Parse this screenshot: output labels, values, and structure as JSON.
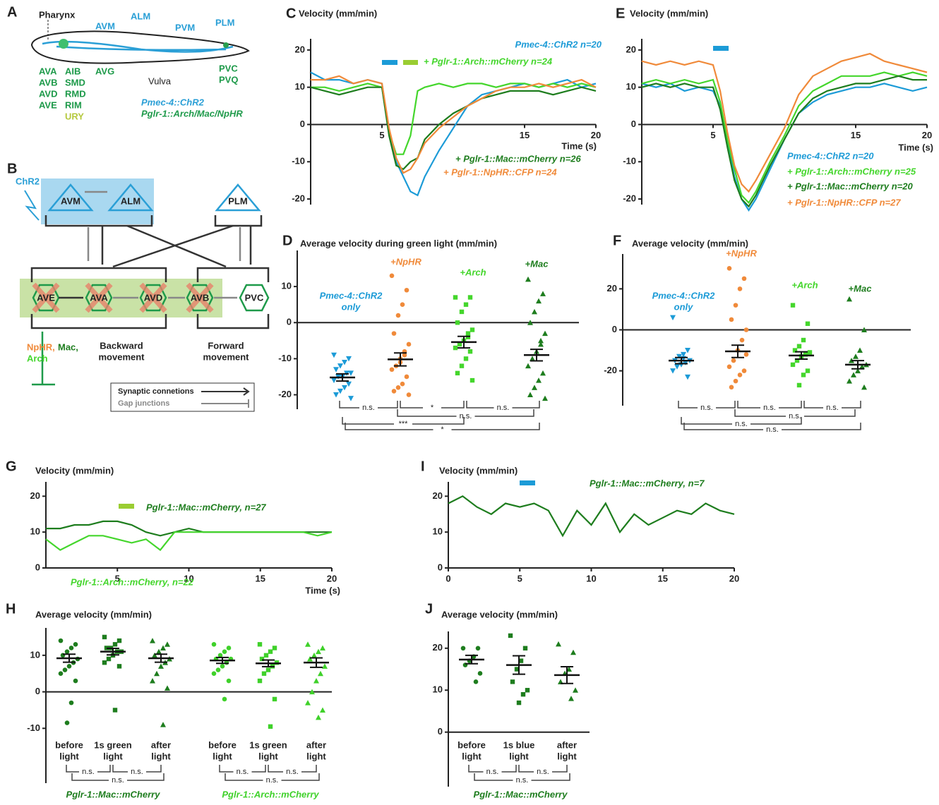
{
  "panel_a": {
    "letter": "A",
    "pharynx": "Pharynx",
    "blue_neurons": [
      "AVM",
      "ALM",
      "PVM",
      "PLM"
    ],
    "green_col1": [
      "AVA",
      "AVB",
      "AVD",
      "AVE"
    ],
    "green_col2": [
      "AIB",
      "SMD",
      "RMD",
      "RIM"
    ],
    "ury": "URY",
    "avg": "AVG",
    "vulva": "Vulva",
    "tail": [
      "PVC",
      "PVQ"
    ],
    "legend": [
      "Pmec-4::ChR2",
      "Pglr-1::Arch/Mac/NpHR"
    ]
  },
  "panel_b": {
    "letter": "B",
    "chr2": "ChR2",
    "nodes": [
      "AVM",
      "ALM",
      "PLM",
      "AVE",
      "AVA",
      "AVD",
      "AVB",
      "PVC"
    ],
    "inhibitors": [
      "NpHR,",
      "Mac,",
      "Arch"
    ],
    "groups": [
      [
        "Backward",
        "movement"
      ],
      [
        "Forward",
        "movement"
      ]
    ],
    "legend": [
      "Synaptic connetions",
      "Gap junctions"
    ]
  },
  "chart_data": [
    {
      "panel": "C",
      "type": "line",
      "title": "Velocity (mm/min)",
      "x_label": "Time (s)",
      "x": [
        0,
        1,
        2,
        3,
        4,
        5,
        5.5,
        6,
        6.5,
        7,
        7.5,
        8,
        9,
        10,
        11,
        12,
        13,
        14,
        15,
        16,
        17,
        18,
        19,
        20
      ],
      "xlim": [
        0,
        20
      ],
      "xticks": [
        5,
        15,
        20
      ],
      "ylim": [
        -21.5,
        23
      ],
      "yticks": [
        -20,
        -10,
        0,
        10,
        20
      ],
      "series": [
        {
          "name": "Pmec-4::ChR2 n=20",
          "color": "#1c9bd7",
          "values": [
            14,
            12,
            12,
            11,
            12,
            11,
            -2,
            -10,
            -14,
            -18,
            -19,
            -14,
            -7,
            -1,
            5,
            8,
            9,
            10,
            11,
            10,
            11,
            12,
            10,
            11
          ]
        },
        {
          "name": "+ Pglr-1::Arch::mCherry n=24",
          "color": "#44d62c",
          "values": [
            10,
            10,
            9,
            10,
            11,
            10,
            -2,
            -8,
            -8,
            -3,
            9,
            10,
            11,
            10,
            11,
            11,
            10,
            11,
            11,
            10,
            11,
            10,
            11,
            10
          ]
        },
        {
          "name": "+ Pglr-1::Mac::mCherry n=26",
          "color": "#1e7d1e",
          "values": [
            10,
            9,
            8,
            9,
            10,
            10,
            -3,
            -11,
            -12,
            -10,
            -9,
            -4,
            0,
            3,
            5,
            7,
            8,
            9,
            9,
            9,
            8,
            9,
            10,
            9
          ]
        },
        {
          "name": "+ Pglr-1::NpHR::CFP n=24",
          "color": "#f08a3a",
          "values": [
            12,
            12,
            13,
            11,
            12,
            11,
            -1,
            -9,
            -13,
            -12,
            -9,
            -5,
            -1,
            2,
            5,
            7,
            9,
            10,
            10,
            11,
            10,
            11,
            12,
            10
          ]
        }
      ]
    },
    {
      "panel": "E",
      "type": "line",
      "title": "Velocity (mm/min)",
      "x_label": "Time (s)",
      "x": [
        0,
        1,
        2,
        3,
        4,
        5,
        5.5,
        6,
        6.5,
        7,
        7.5,
        8,
        9,
        10,
        11,
        12,
        13,
        14,
        15,
        16,
        17,
        18,
        19,
        20
      ],
      "xlim": [
        0,
        20
      ],
      "xticks": [
        5,
        15,
        20
      ],
      "ylim": [
        -21.5,
        23
      ],
      "yticks": [
        -20,
        -10,
        0,
        10,
        20
      ],
      "series": [
        {
          "name": "Pmec-4::ChR2 n=20",
          "color": "#1c9bd7",
          "values": [
            11,
            10,
            11,
            9,
            10,
            9,
            5,
            -5,
            -14,
            -20,
            -23,
            -20,
            -12,
            -4,
            3,
            6,
            8,
            9,
            10,
            10,
            11,
            10,
            9,
            10
          ]
        },
        {
          "name": "+ Pglr-1::Arch::mCherry n=25",
          "color": "#44d62c",
          "values": [
            11,
            12,
            11,
            12,
            11,
            12,
            6,
            -4,
            -12,
            -19,
            -21,
            -18,
            -10,
            -3,
            5,
            9,
            11,
            13,
            13,
            13,
            14,
            13,
            14,
            13
          ]
        },
        {
          "name": "+ Pglr-1::Mac::mCherry n=20",
          "color": "#1e7d1e",
          "values": [
            10,
            11,
            10,
            11,
            10,
            10,
            4,
            -6,
            -15,
            -20,
            -22,
            -19,
            -11,
            -4,
            3,
            7,
            9,
            10,
            11,
            11,
            12,
            13,
            12,
            12
          ]
        },
        {
          "name": "+ Pglr-1::NpHR::CFP n=27",
          "color": "#f08a3a",
          "values": [
            17,
            16,
            17,
            16,
            17,
            16,
            9,
            -2,
            -11,
            -16,
            -18,
            -15,
            -8,
            -1,
            8,
            13,
            15,
            17,
            18,
            19,
            17,
            16,
            15,
            14
          ]
        }
      ]
    },
    {
      "panel": "D",
      "type": "strip",
      "title": "Average velocity during green light (mm/min)",
      "ylim": [
        -24,
        20
      ],
      "yticks": [
        -20,
        -10,
        0,
        10
      ],
      "groups": [
        {
          "label": [
            "Pmec-4::ChR2",
            "only"
          ],
          "color": "#1c9bd7",
          "marker": "triangle-down",
          "values": [
            -9,
            -10,
            -11,
            -12,
            -13,
            -14,
            -14,
            -15,
            -15,
            -16,
            -17,
            -18,
            -19,
            -20,
            -21
          ],
          "mean": -15.2,
          "sem": 1
        },
        {
          "label": [
            "+NpHR"
          ],
          "color": "#f08a3a",
          "marker": "circle",
          "values": [
            13,
            9,
            5,
            2,
            -3,
            -6,
            -9,
            -10,
            -12,
            -13,
            -15,
            -17,
            -18,
            -19,
            -20,
            -8,
            -11
          ],
          "mean": -10.2,
          "sem": 1.8
        },
        {
          "label": [
            "+Arch"
          ],
          "color": "#44d62c",
          "marker": "square",
          "values": [
            7,
            7,
            5,
            3,
            0,
            -2,
            -4,
            -5,
            -6,
            -7,
            -8,
            -10,
            -12,
            -14,
            -16,
            -3
          ],
          "mean": -5.4,
          "sem": 1.6
        },
        {
          "label": [
            "+Mac"
          ],
          "color": "#1e7d1e",
          "marker": "triangle",
          "values": [
            12,
            8,
            6,
            3,
            0,
            -3,
            -6,
            -8,
            -10,
            -12,
            -14,
            -16,
            -18,
            -20,
            -21,
            -5
          ],
          "mean": -9,
          "sem": 1.6
        }
      ],
      "comparisons": [
        "n.s.",
        "*",
        "n.s.",
        "n.s.",
        "***",
        "*"
      ]
    },
    {
      "panel": "F",
      "type": "strip",
      "title": "Average velocity  (mm/min)",
      "ylim": [
        -37,
        37
      ],
      "yticks": [
        -20,
        0,
        20
      ],
      "groups": [
        {
          "label": [
            "Pmec-4::ChR2",
            "only"
          ],
          "color": "#1c9bd7",
          "marker": "triangle-down",
          "values": [
            6,
            -10,
            -12,
            -13,
            -15,
            -15,
            -16,
            -17,
            -18,
            -20,
            -23,
            -14
          ],
          "mean": -15,
          "sem": 1.5
        },
        {
          "label": [
            "+NpHR"
          ],
          "color": "#f08a3a",
          "marker": "circle",
          "values": [
            30,
            25,
            20,
            12,
            5,
            0,
            -5,
            -10,
            -15,
            -18,
            -20,
            -22,
            -25,
            -28,
            -12
          ],
          "mean": -10.5,
          "sem": 3
        },
        {
          "label": [
            "+Arch"
          ],
          "color": "#44d62c",
          "marker": "square",
          "values": [
            12,
            3,
            -5,
            -8,
            -10,
            -11,
            -12,
            -13,
            -15,
            -17,
            -20,
            -22,
            -27
          ],
          "mean": -12.5,
          "sem": 1.8
        },
        {
          "label": [
            "+Mac"
          ],
          "color": "#1e7d1e",
          "marker": "triangle",
          "values": [
            15,
            0,
            -10,
            -13,
            -15,
            -17,
            -18,
            -20,
            -22,
            -25,
            -28
          ],
          "mean": -17,
          "sem": 2
        }
      ],
      "comparisons": [
        "n.s.",
        "n.s.",
        "n.s.",
        "n.s.",
        "n.s.",
        "n.s."
      ]
    },
    {
      "panel": "G",
      "type": "line",
      "title": "Velocity (mm/min)",
      "x_label": "Time (s)",
      "x": [
        0,
        1,
        2,
        3,
        4,
        5,
        6,
        7,
        8,
        9,
        10,
        11,
        12,
        13,
        14,
        15,
        16,
        17,
        18,
        19,
        20
      ],
      "xlim": [
        0,
        20
      ],
      "xticks": [
        5,
        10,
        15,
        20
      ],
      "ylim": [
        0,
        24
      ],
      "yticks": [
        0,
        10,
        20
      ],
      "series": [
        {
          "name": "Pglr-1::Mac::mCherry, n=27",
          "color": "#1e7d1e",
          "values": [
            11,
            11,
            12,
            12,
            13,
            13,
            12,
            10,
            9,
            10,
            11,
            10,
            10,
            10,
            10,
            10,
            10,
            10,
            10,
            10,
            10
          ]
        },
        {
          "name": "Pglr-1::Arch::mCherry, n=22",
          "color": "#44d62c",
          "values": [
            8,
            5,
            7,
            9,
            9,
            8,
            7,
            8,
            5,
            10,
            10,
            10,
            10,
            10,
            10,
            10,
            10,
            10,
            10,
            9,
            10
          ]
        }
      ]
    },
    {
      "panel": "I",
      "type": "line",
      "title": "Velocity (mm/min)",
      "x": [
        0,
        1,
        2,
        3,
        4,
        5,
        6,
        7,
        8,
        9,
        10,
        11,
        12,
        13,
        14,
        15,
        16,
        17,
        18,
        19,
        20
      ],
      "xlim": [
        0,
        20
      ],
      "xticks": [
        0,
        5,
        10,
        15,
        20
      ],
      "ylim": [
        0,
        24
      ],
      "yticks": [
        0,
        10,
        20
      ],
      "series": [
        {
          "name": "Pglr-1::Mac::mCherry, n=7",
          "color": "#1e7d1e",
          "values": [
            18,
            20,
            17,
            15,
            18,
            17,
            18,
            16,
            9,
            16,
            12,
            18,
            10,
            15,
            12,
            14,
            16,
            15,
            18,
            16,
            15
          ]
        }
      ]
    },
    {
      "panel": "H",
      "type": "strip",
      "title": "Average  velocity  (mm/min)",
      "ylim": [
        -25,
        17.5
      ],
      "yticks": [
        -10,
        0,
        10
      ],
      "groups": [
        {
          "label": [
            "before",
            "light"
          ],
          "color": "#1e7d1e",
          "marker": "circle",
          "values": [
            14,
            13,
            12,
            11,
            10,
            9,
            8,
            7,
            6,
            5,
            3,
            -3,
            -8.5
          ],
          "mean": 9.2,
          "sem": 1.1
        },
        {
          "label": [
            "1s green",
            "light"
          ],
          "color": "#1e7d1e",
          "marker": "square",
          "values": [
            15,
            14,
            13,
            12,
            12,
            11,
            11,
            10,
            9,
            8,
            7,
            -5
          ],
          "mean": 11,
          "sem": 0.9
        },
        {
          "label": [
            "after",
            "light"
          ],
          "color": "#1e7d1e",
          "marker": "triangle",
          "values": [
            14,
            13,
            12,
            11,
            10,
            9,
            8,
            7,
            5,
            3,
            1,
            -9
          ],
          "mean": 9.2,
          "sem": 1.1
        },
        {
          "label": [
            "before",
            "light"
          ],
          "color": "#3fd12a",
          "marker": "circle",
          "values": [
            13,
            12,
            11,
            10,
            9,
            9,
            8,
            7,
            6,
            5,
            3,
            -2
          ],
          "mean": 8.6,
          "sem": 0.8
        },
        {
          "label": [
            "1s green",
            "light"
          ],
          "color": "#3fd12a",
          "marker": "square",
          "values": [
            13,
            12,
            11,
            10,
            9,
            8,
            7,
            6,
            5,
            3,
            -2,
            -9.5
          ],
          "mean": 7.8,
          "sem": 0.9
        },
        {
          "label": [
            "after",
            "light"
          ],
          "color": "#3fd12a",
          "marker": "triangle",
          "values": [
            13,
            12,
            11,
            10,
            9,
            7,
            5,
            3,
            0,
            -3,
            -5,
            -7
          ],
          "mean": 8,
          "sem": 1.3
        }
      ],
      "comparisons": [
        "n.s.",
        "n.s.",
        "n.s.",
        "n.s.",
        "n.s.",
        "n.s."
      ],
      "captions": [
        "Pglr-1::Mac::mCherry",
        "Pglr-1::Arch::mCherry"
      ]
    },
    {
      "panel": "J",
      "type": "strip",
      "title": "Average  velocity  (mm/min)",
      "ylim": [
        -13,
        24
      ],
      "yticks": [
        0,
        10,
        20
      ],
      "groups": [
        {
          "label": [
            "before",
            "light"
          ],
          "color": "#1e7d1e",
          "marker": "circle",
          "values": [
            20,
            20,
            18,
            17,
            16,
            14,
            12
          ],
          "mean": 17.3,
          "sem": 1
        },
        {
          "label": [
            "1s blue",
            "light"
          ],
          "color": "#1e7d1e",
          "marker": "square",
          "values": [
            23,
            20,
            17,
            15,
            12,
            10,
            9,
            7
          ],
          "mean": 16,
          "sem": 2.2
        },
        {
          "label": [
            "after",
            "light"
          ],
          "color": "#1e7d1e",
          "marker": "triangle",
          "values": [
            21,
            19,
            15,
            14,
            12,
            10,
            8
          ],
          "mean": 13.6,
          "sem": 2
        }
      ],
      "comparisons": [
        "n.s.",
        "n.s.",
        "n.s."
      ],
      "captions": [
        "Pglr-1::Mac::mCherry"
      ]
    }
  ]
}
